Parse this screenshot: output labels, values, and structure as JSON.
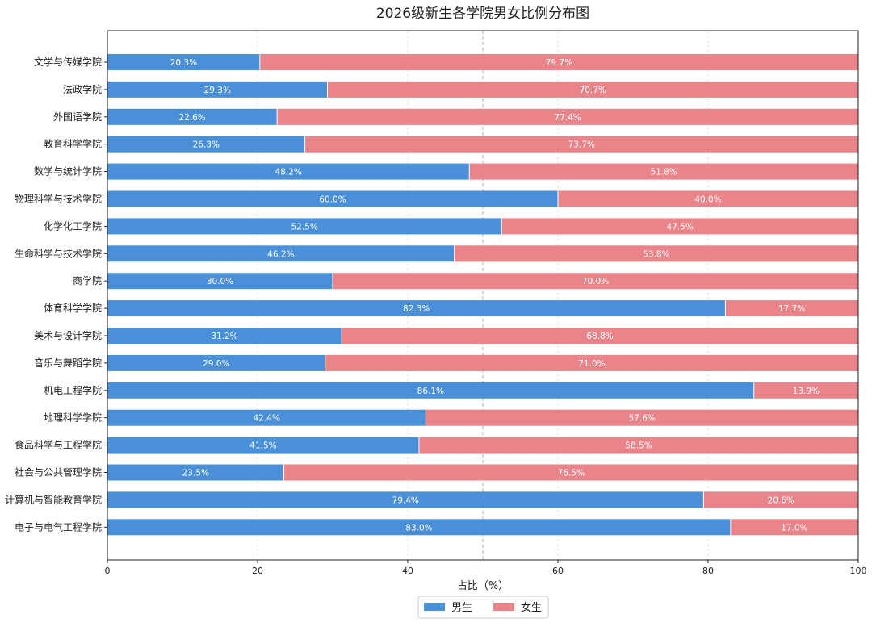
{
  "chart_data": {
    "type": "bar",
    "orientation": "horizontal",
    "stacked": true,
    "title": "2026级新生各学院男女比例分布图",
    "xlabel": "占比（%）",
    "ylabel": "",
    "xlim": [
      0,
      100
    ],
    "xticks": [
      0,
      20,
      40,
      60,
      80,
      100
    ],
    "reference_line": 50,
    "grid": "vertical dashed",
    "legend_position": "bottom-center",
    "categories": [
      "文学与传媒学院",
      "法政学院",
      "外国语学院",
      "教育科学学院",
      "数学与统计学院",
      "物理科学与技术学院",
      "化学化工学院",
      "生命科学与技术学院",
      "商学院",
      "体育科学学院",
      "美术与设计学院",
      "音乐与舞蹈学院",
      "机电工程学院",
      "地理科学学院",
      "食品科学与工程学院",
      "社会与公共管理学院",
      "计算机与智能教育学院",
      "电子与电气工程学院"
    ],
    "series": [
      {
        "name": "男生",
        "color": "#4a90d9",
        "values": [
          20.3,
          29.3,
          22.6,
          26.3,
          48.2,
          60.0,
          52.5,
          46.2,
          30.0,
          82.3,
          31.2,
          29.0,
          86.1,
          42.4,
          41.5,
          23.5,
          79.4,
          83.0
        ],
        "labels": [
          "20.3%",
          "29.3%",
          "22.6%",
          "26.3%",
          "48.2%",
          "60.0%",
          "52.5%",
          "46.2%",
          "30.0%",
          "82.3%",
          "31.2%",
          "29.0%",
          "86.1%",
          "42.4%",
          "41.5%",
          "23.5%",
          "79.4%",
          "83.0%"
        ]
      },
      {
        "name": "女生",
        "color": "#e8848a",
        "values": [
          79.7,
          70.7,
          77.4,
          73.7,
          51.8,
          40.0,
          47.5,
          53.8,
          70.0,
          17.7,
          68.8,
          71.0,
          13.9,
          57.6,
          58.5,
          76.5,
          20.6,
          17.0
        ],
        "labels": [
          "79.7%",
          "70.7%",
          "77.4%",
          "73.7%",
          "51.8%",
          "40.0%",
          "47.5%",
          "53.8%",
          "70.0%",
          "17.7%",
          "68.8%",
          "71.0%",
          "13.9%",
          "57.6%",
          "58.5%",
          "76.5%",
          "20.6%",
          "17.0%"
        ]
      }
    ]
  }
}
